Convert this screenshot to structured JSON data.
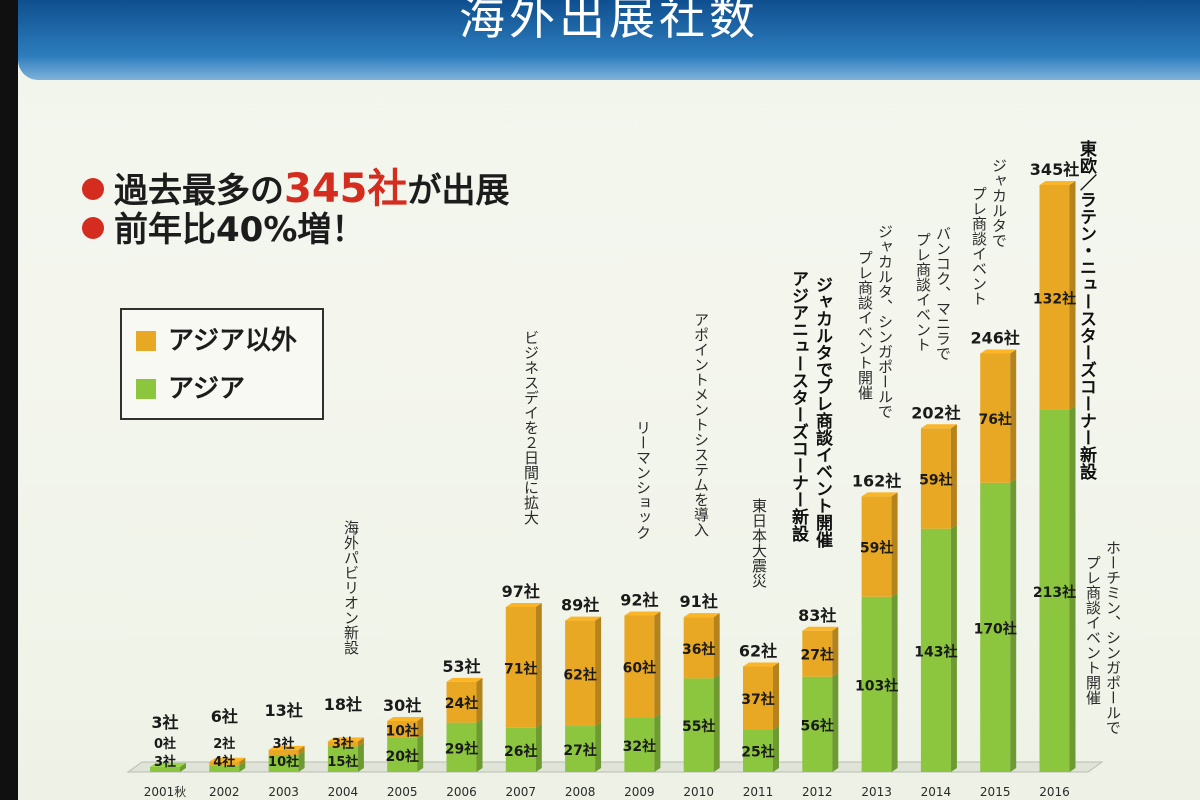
{
  "title": "海外出展社数",
  "bullets": [
    {
      "pre": "過去最多の",
      "highlight": "345社",
      "post": "が出展"
    },
    {
      "pre": "前年比40%増！",
      "highlight": "",
      "post": ""
    }
  ],
  "legend": {
    "non_asia": "アジア以外",
    "asia": "アジア"
  },
  "colors": {
    "non_asia": "#e8a824",
    "asia": "#8cc63f",
    "accent": "#d42d1f",
    "title_bg": "#1d5fa0"
  },
  "annotations": {
    "a2004": "海外パビリオン新設",
    "a2007": "ビジネスデイを２日間に拡大",
    "a2009": "リーマンショック",
    "a2010": "アポイントメントシステムを導入",
    "a2011": "東日本大震災",
    "a2012a": "ジャカルタでプレ商談イベント開催",
    "a2012b": "アジアニュースターズコーナー新設",
    "a2013a": "ジャカルタ、シンガポールで",
    "a2013b": "プレ商談イベント開催",
    "a2014a": "バンコク、マニラで",
    "a2014b": "プレ商談イベント",
    "a2015a": "ジャカルタで",
    "a2015b": "プレ商談イベント",
    "a2016a": "東欧／ラテン・ニュースターズコーナー新設",
    "a2016b": "ホーチミン、シンガポールで",
    "a2016c": "プレ商談イベント開催"
  },
  "chart_data": {
    "type": "bar",
    "stacked": true,
    "unit": "社",
    "categories": [
      "2001秋",
      "2002",
      "2003",
      "2004",
      "2005",
      "2006",
      "2007",
      "2008",
      "2009",
      "2010",
      "2011",
      "2012",
      "2013",
      "2014",
      "2015",
      "2016"
    ],
    "series": [
      {
        "name": "アジア",
        "values": [
          3,
          4,
          10,
          15,
          20,
          29,
          26,
          27,
          32,
          55,
          25,
          56,
          103,
          143,
          170,
          213
        ]
      },
      {
        "name": "アジア以外",
        "values": [
          0,
          2,
          3,
          3,
          10,
          24,
          71,
          62,
          60,
          36,
          37,
          27,
          59,
          59,
          76,
          132
        ]
      }
    ],
    "totals": [
      3,
      6,
      13,
      18,
      30,
      53,
      97,
      89,
      92,
      91,
      62,
      83,
      162,
      202,
      246,
      345
    ],
    "value_labels": {
      "asia": [
        "3社",
        "4社",
        "10社",
        "15社",
        "20社",
        "29社",
        "26社",
        "27社",
        "32社",
        "55社",
        "25社",
        "56社",
        "103社",
        "143社",
        "170社",
        "213社"
      ],
      "non_asia": [
        "0社",
        "2社",
        "3社",
        "3社",
        "10社",
        "24社",
        "71社",
        "62社",
        "60社",
        "36社",
        "37社",
        "27社",
        "59社",
        "59社",
        "76社",
        "132社"
      ],
      "totals": [
        "3社",
        "6社",
        "13社",
        "18社",
        "30社",
        "53社",
        "97社",
        "89社",
        "92社",
        "91社",
        "62社",
        "83社",
        "162社",
        "202社",
        "246社",
        "345社"
      ]
    },
    "ylim": [
      0,
      345
    ]
  }
}
